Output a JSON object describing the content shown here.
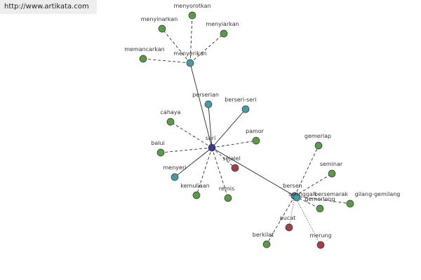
{
  "header": {
    "watermark": "http://www.artikata.com"
  },
  "nodes": [
    {
      "label": "seri"
    },
    {
      "label": "menyerikan"
    },
    {
      "label": "menyorotkan"
    },
    {
      "label": "menyinarkan"
    },
    {
      "label": "menyiarkan"
    },
    {
      "label": "memancarkan"
    },
    {
      "label": "perserian"
    },
    {
      "label": "berseri-seri"
    },
    {
      "label": "cahaya"
    },
    {
      "label": "pamor"
    },
    {
      "label": "balui"
    },
    {
      "label": "sejalel"
    },
    {
      "label": "menyeri"
    },
    {
      "label": "kemuliaan"
    },
    {
      "label": "remis"
    },
    {
      "label": "bersen"
    },
    {
      "label": "gemerlap"
    },
    {
      "label": "seminar"
    },
    {
      "label": "seringgah"
    },
    {
      "label": "bersemarak"
    },
    {
      "label": "gilang-gemilang"
    },
    {
      "label": "gemerlang"
    },
    {
      "label": "pucat"
    },
    {
      "label": "merung"
    },
    {
      "label": "berkilat"
    }
  ]
}
